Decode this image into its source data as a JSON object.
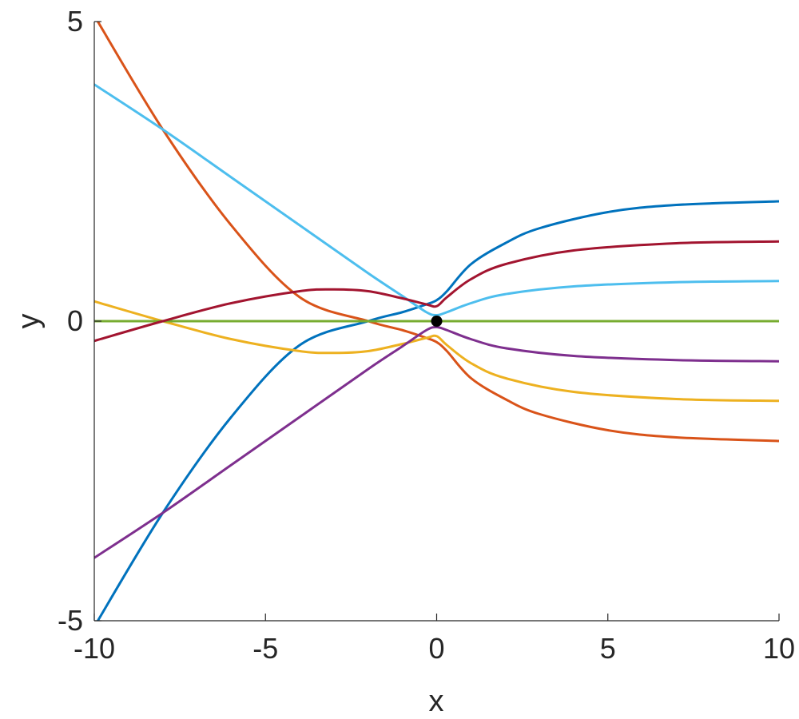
{
  "chart_data": {
    "type": "line",
    "xlabel": "x",
    "ylabel": "y",
    "xlim": [
      -10,
      10
    ],
    "ylim": [
      -5,
      5
    ],
    "xticks": [
      "-10",
      "-5",
      "0",
      "5",
      "10"
    ],
    "yticks": [
      "-5",
      "0",
      "5"
    ],
    "grid": false,
    "series": [
      {
        "color": "#0072BD",
        "points": [
          [
            -10,
            -5.1
          ],
          [
            -8,
            -3.2
          ],
          [
            -6,
            -1.6
          ],
          [
            -4,
            -0.4
          ],
          [
            -2,
            0.0
          ],
          [
            -1,
            0.15
          ],
          [
            -0.3,
            0.28
          ],
          [
            0,
            0.35
          ],
          [
            0.3,
            0.5
          ],
          [
            1,
            0.95
          ],
          [
            2,
            1.3
          ],
          [
            3,
            1.55
          ],
          [
            5,
            1.82
          ],
          [
            7,
            1.94
          ],
          [
            10,
            2.0
          ]
        ]
      },
      {
        "color": "#D95319",
        "points": [
          [
            -10,
            5.1
          ],
          [
            -8,
            3.2
          ],
          [
            -6,
            1.6
          ],
          [
            -4,
            0.4
          ],
          [
            -2,
            0.0
          ],
          [
            -1,
            -0.15
          ],
          [
            -0.3,
            -0.28
          ],
          [
            0,
            -0.35
          ],
          [
            0.3,
            -0.5
          ],
          [
            1,
            -0.95
          ],
          [
            2,
            -1.3
          ],
          [
            3,
            -1.55
          ],
          [
            5,
            -1.82
          ],
          [
            7,
            -1.94
          ],
          [
            10,
            -2.0
          ]
        ]
      },
      {
        "color": "#EDB120",
        "points": [
          [
            -10,
            0.33
          ],
          [
            -8,
            0.0
          ],
          [
            -6,
            -0.3
          ],
          [
            -4,
            -0.5
          ],
          [
            -3,
            -0.53
          ],
          [
            -2,
            -0.5
          ],
          [
            -1,
            -0.38
          ],
          [
            -0.3,
            -0.28
          ],
          [
            0,
            -0.25
          ],
          [
            0.3,
            -0.4
          ],
          [
            1,
            -0.7
          ],
          [
            2,
            -0.95
          ],
          [
            4,
            -1.18
          ],
          [
            7,
            -1.3
          ],
          [
            10,
            -1.33
          ]
        ]
      },
      {
        "color": "#7E2F8E",
        "points": [
          [
            -10,
            -3.95
          ],
          [
            -8,
            -3.2
          ],
          [
            -6,
            -2.4
          ],
          [
            -4,
            -1.6
          ],
          [
            -2,
            -0.8
          ],
          [
            -1,
            -0.42
          ],
          [
            -0.3,
            -0.15
          ],
          [
            0,
            -0.1
          ],
          [
            0.3,
            -0.15
          ],
          [
            1,
            -0.3
          ],
          [
            2,
            -0.45
          ],
          [
            4,
            -0.58
          ],
          [
            7,
            -0.65
          ],
          [
            10,
            -0.67
          ]
        ]
      },
      {
        "color": "#77AC30",
        "points": [
          [
            -10,
            0
          ],
          [
            10,
            0
          ]
        ]
      },
      {
        "color": "#4DBEEE",
        "points": [
          [
            -10,
            3.95
          ],
          [
            -8,
            3.2
          ],
          [
            -6,
            2.4
          ],
          [
            -4,
            1.6
          ],
          [
            -2,
            0.8
          ],
          [
            -1,
            0.42
          ],
          [
            -0.3,
            0.15
          ],
          [
            0,
            0.1
          ],
          [
            0.3,
            0.15
          ],
          [
            1,
            0.3
          ],
          [
            2,
            0.45
          ],
          [
            4,
            0.58
          ],
          [
            7,
            0.65
          ],
          [
            10,
            0.67
          ]
        ]
      },
      {
        "color": "#A2142F",
        "points": [
          [
            -10,
            -0.33
          ],
          [
            -8,
            0.0
          ],
          [
            -6,
            0.3
          ],
          [
            -4,
            0.5
          ],
          [
            -3,
            0.53
          ],
          [
            -2,
            0.5
          ],
          [
            -1,
            0.38
          ],
          [
            -0.3,
            0.28
          ],
          [
            0,
            0.25
          ],
          [
            0.3,
            0.4
          ],
          [
            1,
            0.7
          ],
          [
            2,
            0.95
          ],
          [
            4,
            1.18
          ],
          [
            7,
            1.3
          ],
          [
            10,
            1.33
          ]
        ]
      }
    ],
    "marker": {
      "x": 0,
      "y": 0,
      "color": "#000000"
    }
  }
}
